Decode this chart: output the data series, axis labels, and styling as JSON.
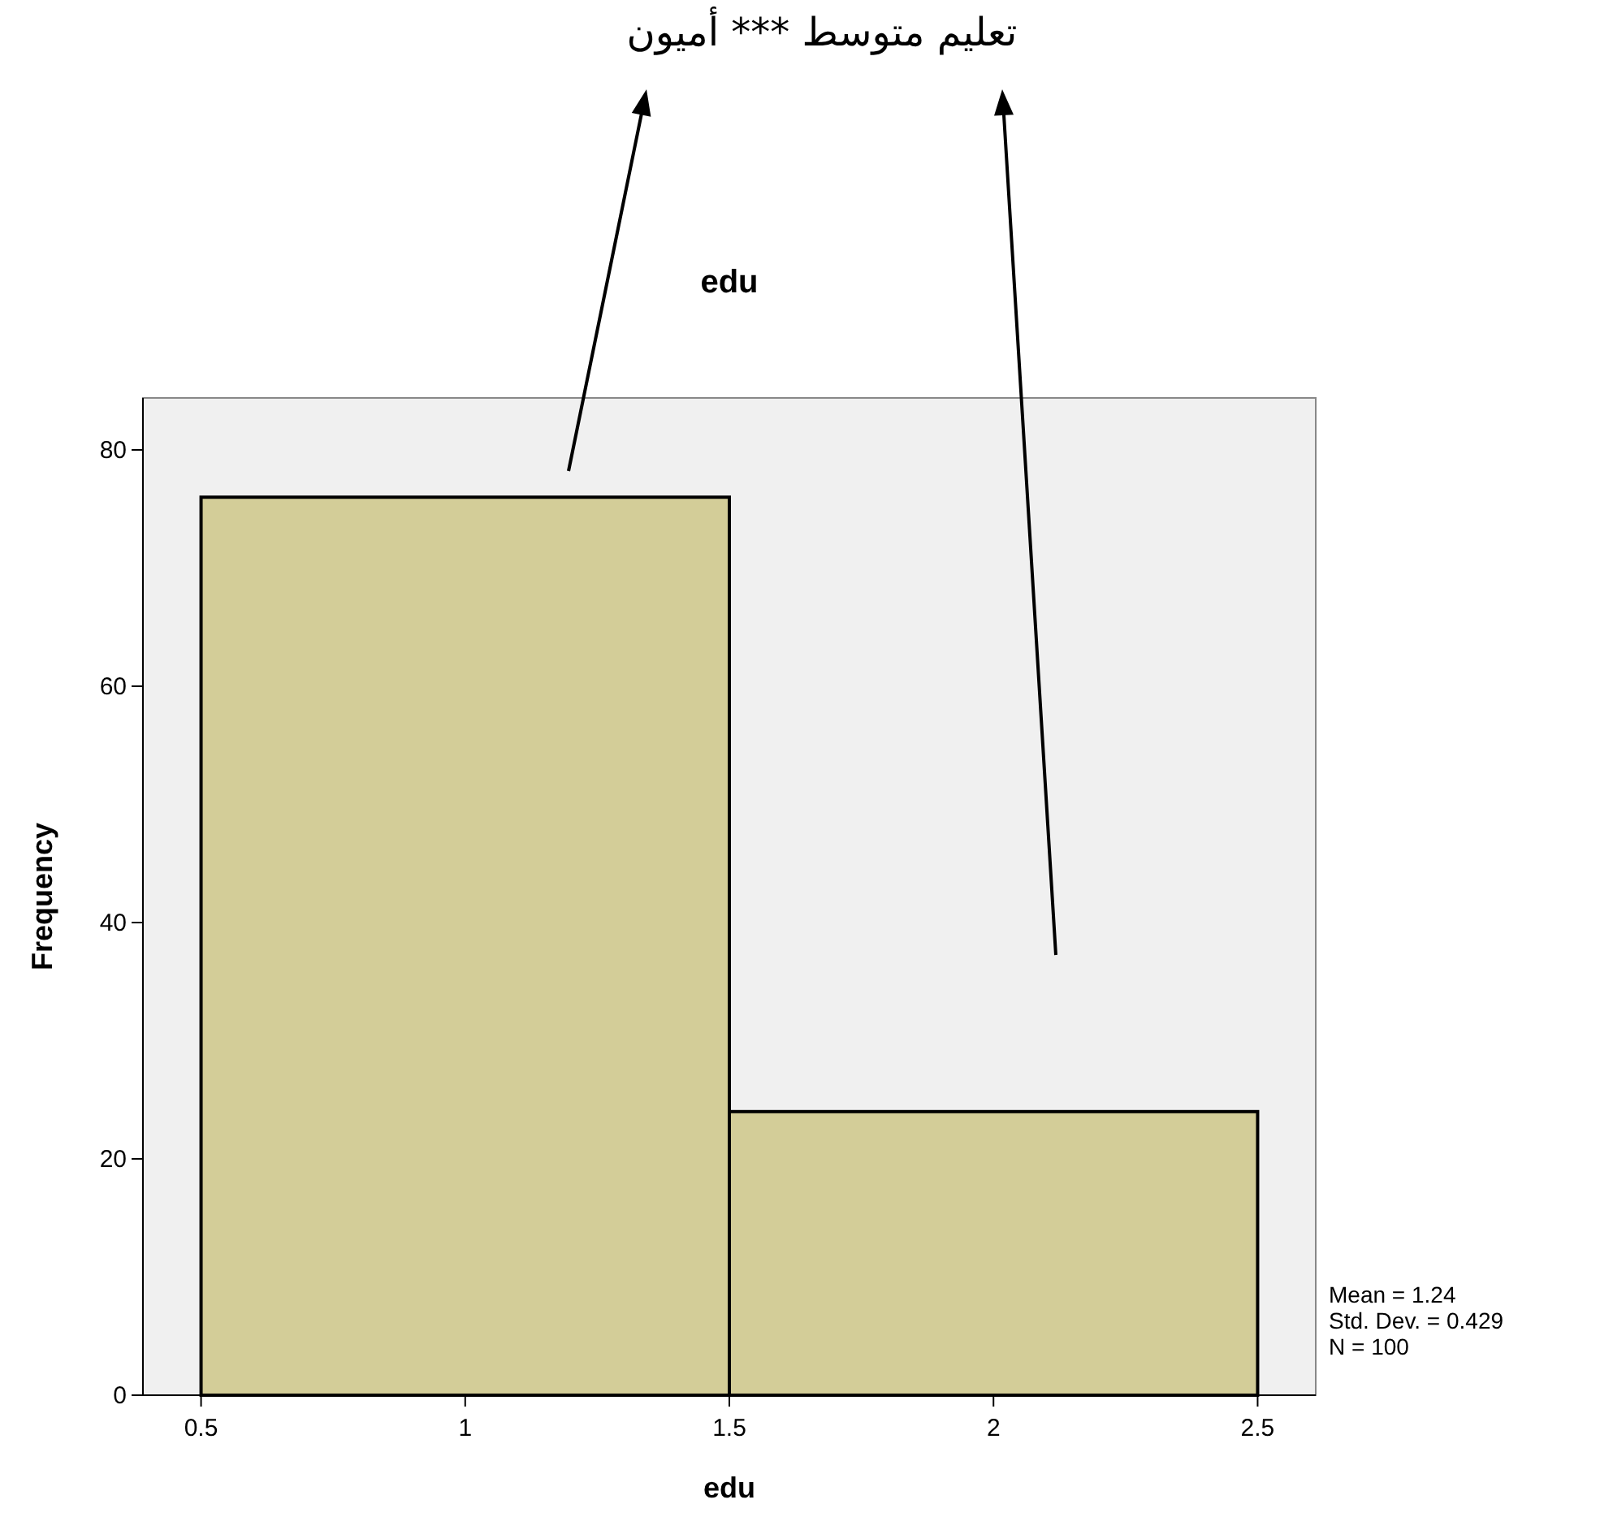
{
  "chart_data": {
    "type": "histogram",
    "title": "edu",
    "xlabel": "edu",
    "ylabel": "Frequency",
    "bins": [
      0.5,
      1.5,
      2.5
    ],
    "values": [
      76,
      24
    ],
    "color": "#d3cd98",
    "xlim": [
      0.39,
      2.61
    ],
    "ylim": [
      0,
      84.4
    ],
    "xticks": [
      0.5,
      1,
      1.5,
      2,
      2.5
    ],
    "yticks": [
      0,
      20,
      40,
      60,
      80
    ],
    "grid": false,
    "annotations": [
      "تعليم متوسط *** أميون",
      "Mean = 1.24",
      "Std. Dev. = 0.429",
      "N = 100"
    ]
  }
}
